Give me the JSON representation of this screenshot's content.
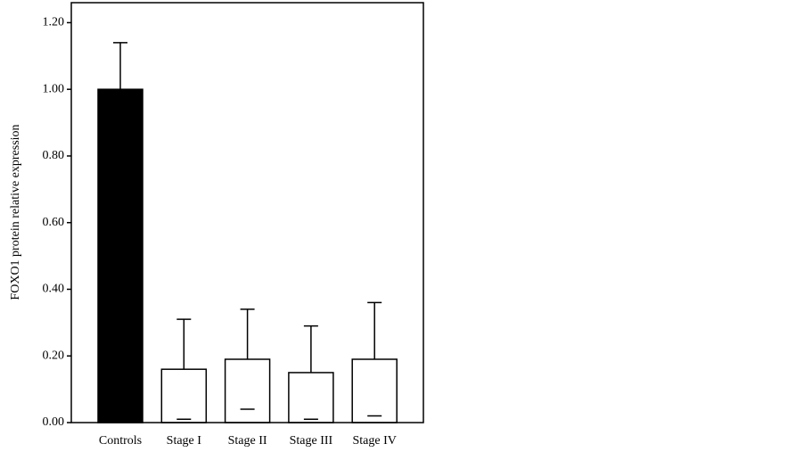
{
  "chart_data": {
    "type": "bar",
    "y_label": "FOXO1 protein relative expression",
    "categories": [
      "Controls",
      "Stage I",
      "Stage II",
      "Stage III",
      "Stage IV"
    ],
    "values": [
      1.0,
      0.16,
      0.19,
      0.15,
      0.19
    ],
    "errors": [
      0.14,
      0.15,
      0.15,
      0.14,
      0.17
    ],
    "colors": [
      "#000000",
      "#ffffff",
      "#ffffff",
      "#ffffff",
      "#ffffff"
    ],
    "ylim": [
      0,
      1.26
    ],
    "yticks": [
      {
        "value": 0,
        "label": "0.00"
      },
      {
        "value": 0.2,
        "label": "0.20"
      },
      {
        "value": 0.4,
        "label": "0.40"
      },
      {
        "value": 0.6,
        "label": "0.60"
      },
      {
        "value": 0.8,
        "label": "0.80"
      },
      {
        "value": 1.0,
        "label": "1.00"
      },
      {
        "value": 1.2,
        "label": "1.20"
      }
    ]
  }
}
